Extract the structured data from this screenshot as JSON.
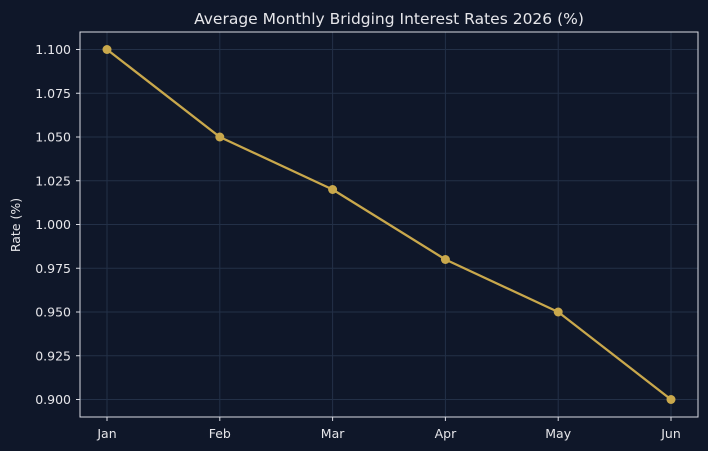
{
  "colors": {
    "background": "#0f1729",
    "plot_background": "#0f1729",
    "frame": "#d9dbe3",
    "grid": "#233047",
    "text": "#e6e6ea",
    "series_line": "#c9a84c"
  },
  "chart_data": {
    "type": "line",
    "title": "Average Monthly Bridging Interest Rates 2026 (%)",
    "xlabel": "",
    "ylabel": "Rate (%)",
    "categories": [
      "Jan",
      "Feb",
      "Mar",
      "Apr",
      "May",
      "Jun"
    ],
    "series": [
      {
        "values": [
          1.1,
          1.05,
          1.02,
          0.98,
          0.95,
          0.9
        ]
      }
    ],
    "ylim": [
      0.89,
      1.11
    ],
    "yticks": [
      0.9,
      0.925,
      0.95,
      0.975,
      1.0,
      1.025,
      1.05,
      1.075,
      1.1
    ],
    "ytick_labels": [
      "0.900",
      "0.925",
      "0.950",
      "0.975",
      "1.000",
      "1.025",
      "1.050",
      "1.075",
      "1.100"
    ],
    "grid": true,
    "markers": true
  }
}
